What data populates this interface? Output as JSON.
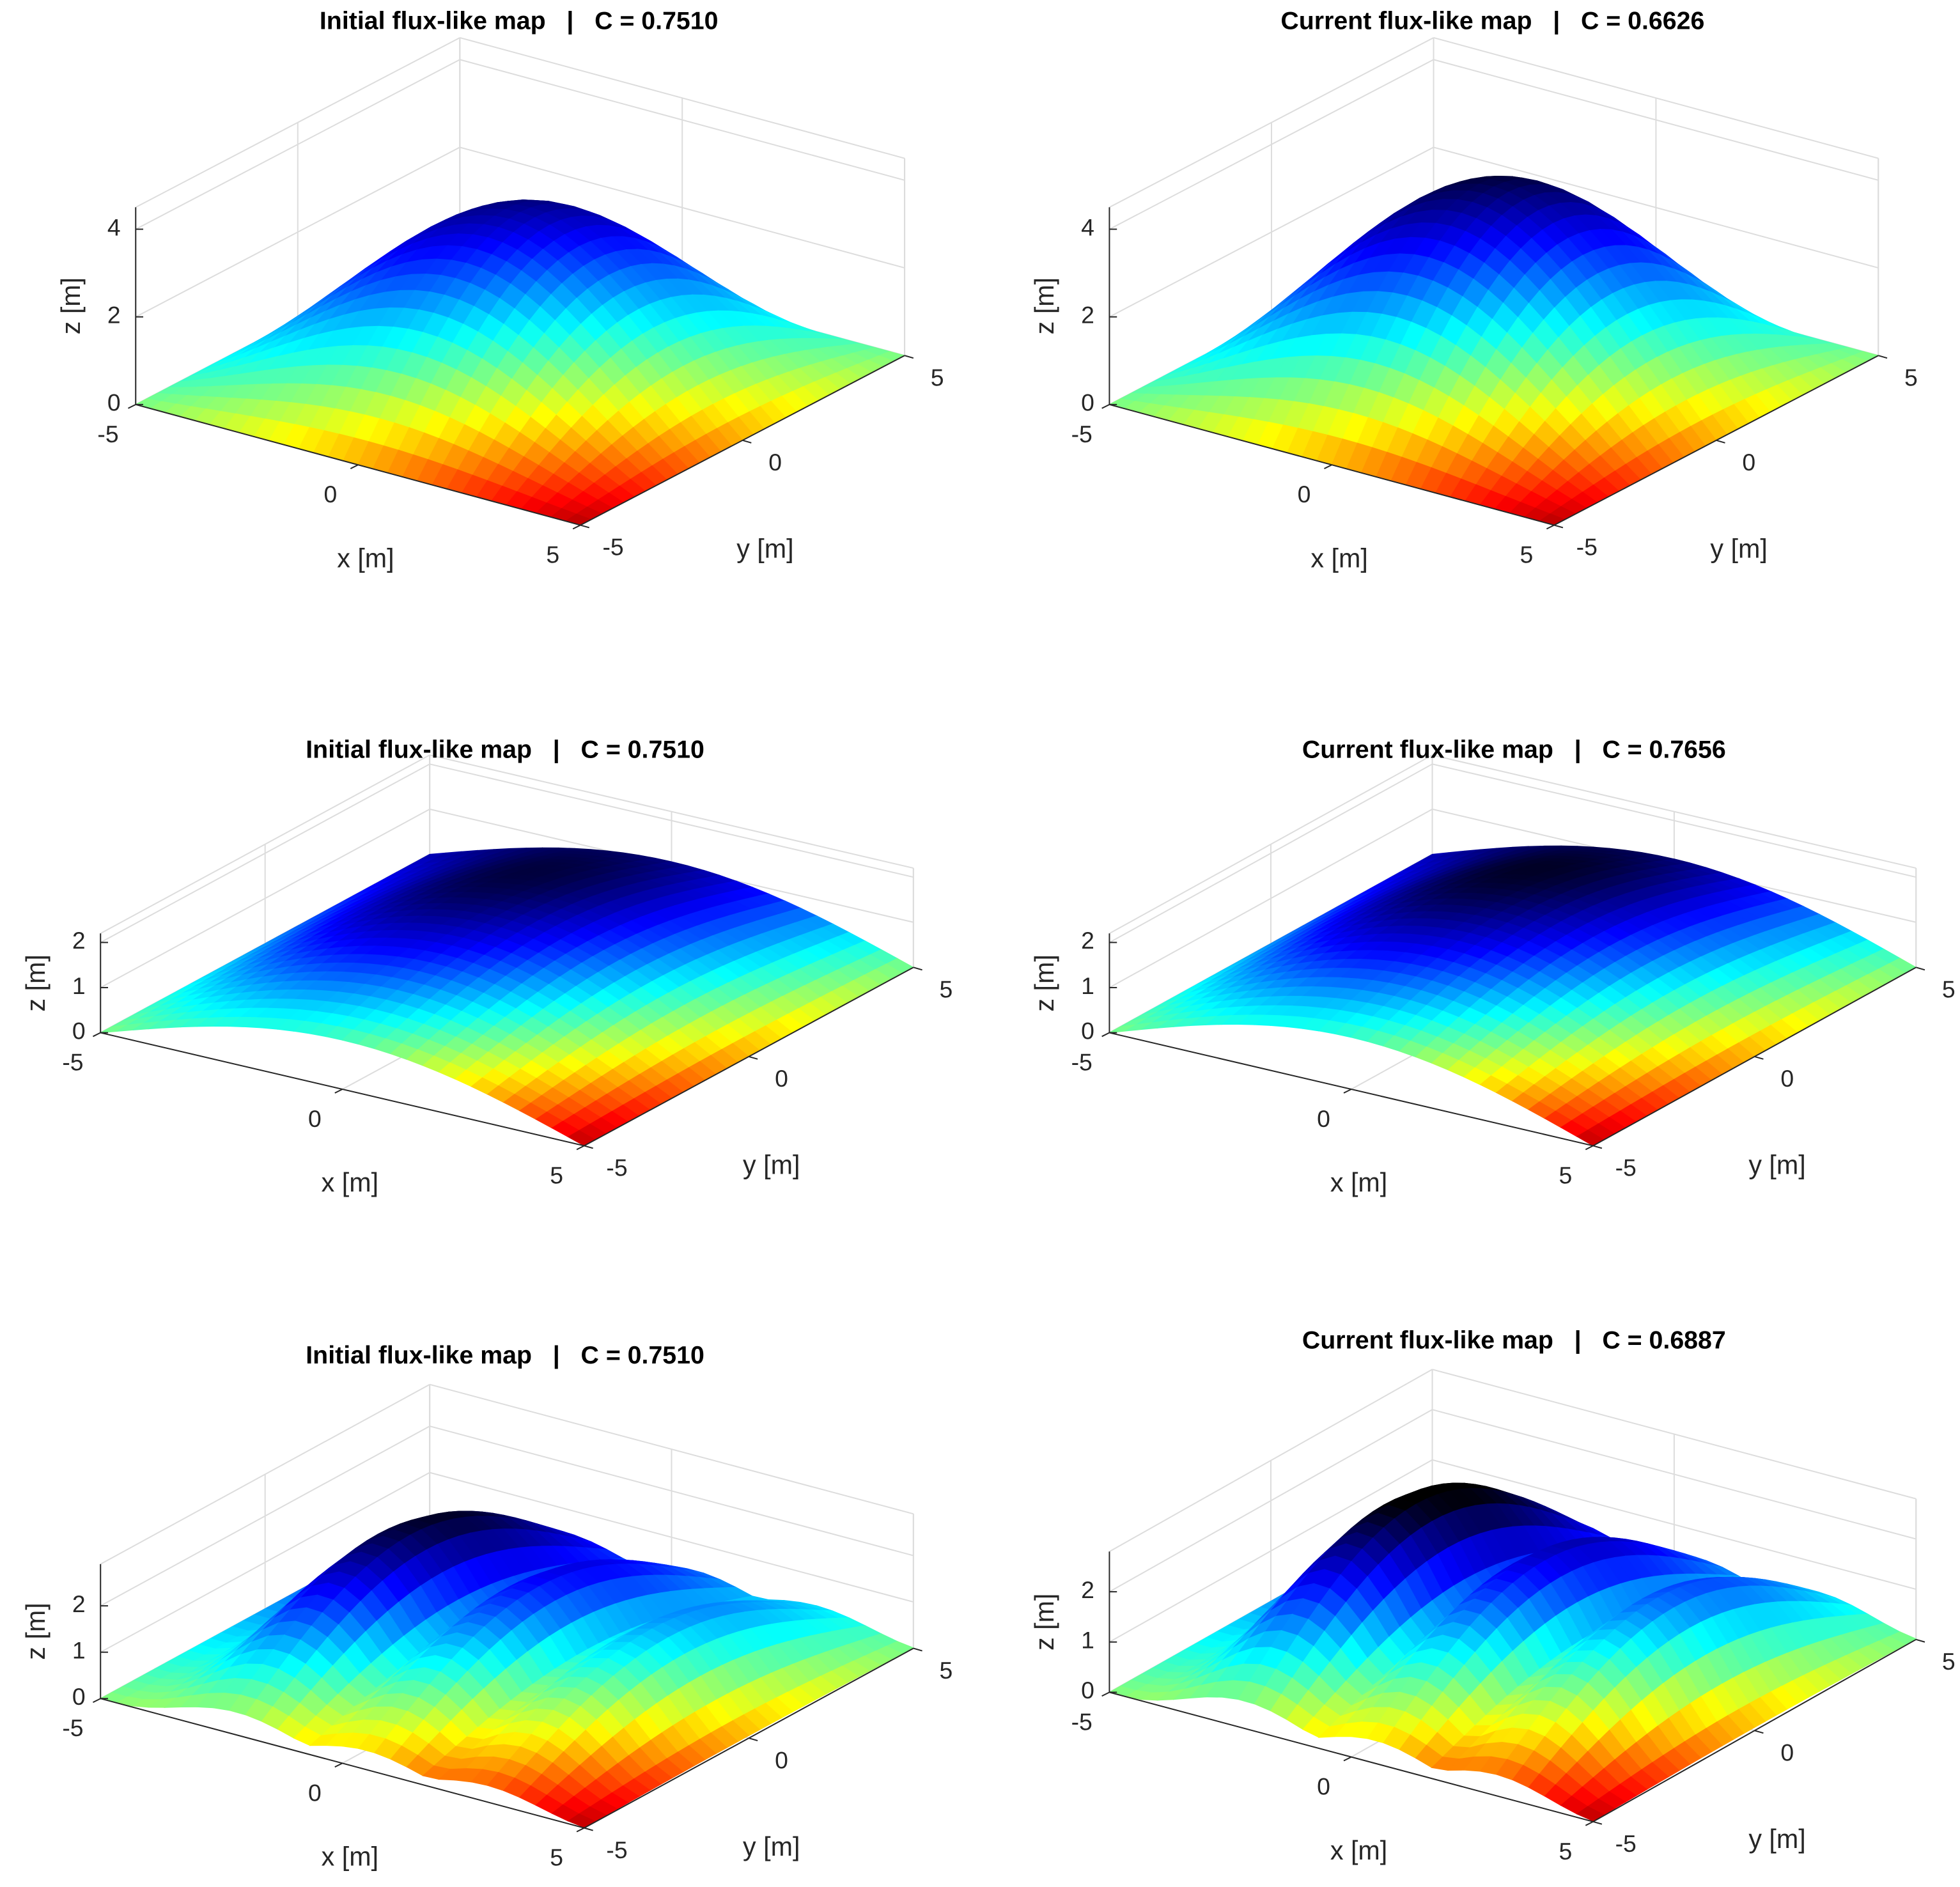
{
  "chart_data": [
    {
      "type": "surface",
      "title": "Initial flux-like map   |   C = 0.7510",
      "xlabel": "x [m]",
      "ylabel": "y [m]",
      "zlabel": "z [m]",
      "colormap": "jet",
      "grid": true,
      "xlim": [
        -5,
        5
      ],
      "ylim": [
        -5,
        5
      ],
      "zlim": [
        0,
        4.5
      ],
      "xticks": [
        -5,
        0,
        5
      ],
      "yticks": [
        -5,
        0,
        5
      ],
      "zticks": [
        0,
        2,
        4
      ]
    },
    {
      "type": "surface",
      "title": "Current flux-like map   |   C = 0.6626",
      "xlabel": "x [m]",
      "ylabel": "y [m]",
      "zlabel": "z [m]",
      "colormap": "jet",
      "grid": true,
      "xlim": [
        -5,
        5
      ],
      "ylim": [
        -5,
        5
      ],
      "zlim": [
        0,
        4.5
      ],
      "xticks": [
        -5,
        0,
        5
      ],
      "yticks": [
        -5,
        0,
        5
      ],
      "zticks": [
        0,
        2,
        4
      ]
    },
    {
      "type": "surface",
      "title": "Initial flux-like map   |   C = 0.7510",
      "xlabel": "x [m]",
      "ylabel": "y [m]",
      "zlabel": "z [m]",
      "colormap": "jet",
      "grid": true,
      "xlim": [
        -5,
        5
      ],
      "ylim": [
        -5,
        5
      ],
      "zlim": [
        0,
        2.2
      ],
      "xticks": [
        -5,
        0,
        5
      ],
      "yticks": [
        -5,
        0,
        5
      ],
      "zticks": [
        0,
        1,
        2
      ]
    },
    {
      "type": "surface",
      "title": "Current flux-like map   |   C = 0.7656",
      "xlabel": "x [m]",
      "ylabel": "y [m]",
      "zlabel": "z [m]",
      "colormap": "jet",
      "grid": true,
      "xlim": [
        -5,
        5
      ],
      "ylim": [
        -5,
        5
      ],
      "zlim": [
        0,
        2.2
      ],
      "xticks": [
        -5,
        0,
        5
      ],
      "yticks": [
        -5,
        0,
        5
      ],
      "zticks": [
        0,
        1,
        2
      ]
    },
    {
      "type": "surface",
      "title": "Initial flux-like map   |   C = 0.7510",
      "xlabel": "x [m]",
      "ylabel": "y [m]",
      "zlabel": "z [m]",
      "colormap": "jet",
      "grid": true,
      "xlim": [
        -5,
        5
      ],
      "ylim": [
        -5,
        5
      ],
      "zlim": [
        0,
        2.9
      ],
      "xticks": [
        -5,
        0,
        5
      ],
      "yticks": [
        -5,
        0,
        5
      ],
      "zticks": [
        0,
        1,
        2
      ]
    },
    {
      "type": "surface",
      "title": "Current flux-like map   |   C = 0.6887",
      "xlabel": "x [m]",
      "ylabel": "y [m]",
      "zlabel": "z [m]",
      "colormap": "jet",
      "grid": true,
      "xlim": [
        -5,
        5
      ],
      "ylim": [
        -5,
        5
      ],
      "zlim": [
        0,
        2.8
      ],
      "xticks": [
        -5,
        0,
        5
      ],
      "yticks": [
        -5,
        0,
        5
      ],
      "zticks": [
        0,
        1,
        2
      ]
    }
  ]
}
